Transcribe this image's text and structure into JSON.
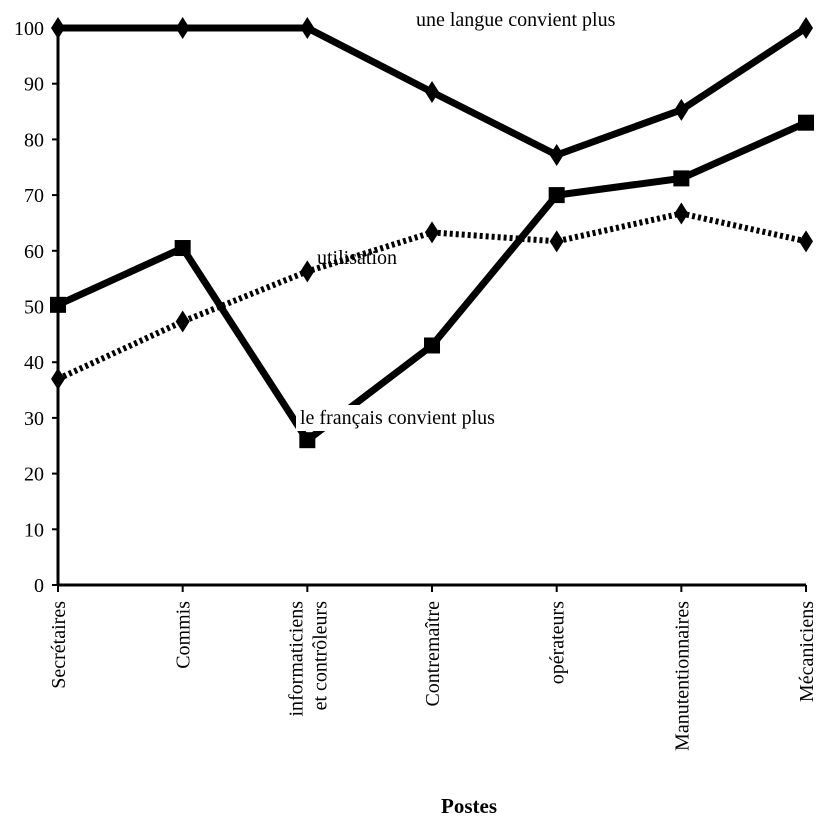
{
  "chart_data": {
    "type": "line",
    "title": "",
    "xlabel": "Postes",
    "ylabel": "",
    "ylim": [
      0,
      100
    ],
    "yticks": [
      0,
      10,
      20,
      30,
      40,
      50,
      60,
      70,
      80,
      90,
      100
    ],
    "grid": false,
    "legend": "none",
    "categories": [
      "Secrétaires",
      "Commis",
      "informaticiens et contrôleurs",
      "Contremaître",
      "opérateurs",
      "Manutentionnaires",
      "Mécaniciens"
    ],
    "category_lines": [
      [
        "Secrétaires"
      ],
      [
        "Commis"
      ],
      [
        "informaticiens",
        "et contrôleurs"
      ],
      [
        "Contremaître"
      ],
      [
        "opérateurs"
      ],
      [
        "Manutentionnaires"
      ],
      [
        "Mécaniciens"
      ]
    ],
    "series": [
      {
        "name": "une langue convient plus",
        "marker": "diamond",
        "line": "solid",
        "color": "#000000",
        "values": [
          100,
          100,
          100,
          88.5,
          77.2,
          85.3,
          100
        ]
      },
      {
        "name": "le français convient plus",
        "marker": "square",
        "line": "solid",
        "color": "#000000",
        "values": [
          50.3,
          60.5,
          26,
          43,
          70,
          73,
          83
        ]
      },
      {
        "name": "utilisation",
        "marker": "diamond",
        "line": "dotted",
        "color": "#000000",
        "values": [
          37,
          47.3,
          56.3,
          63.3,
          61.7,
          66.7,
          61.7
        ]
      }
    ]
  }
}
